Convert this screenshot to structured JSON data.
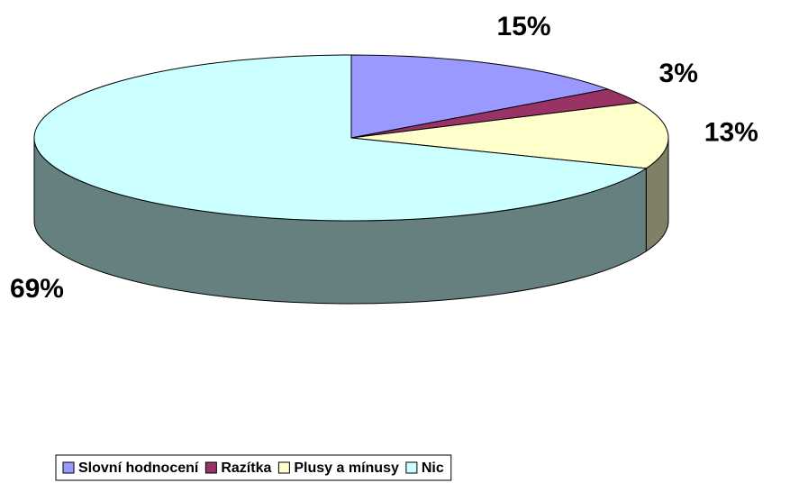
{
  "chart_data": {
    "type": "pie3d",
    "categories": [
      "Slovní hodnocení",
      "Razítka",
      "Plusy a mínusy",
      "Nic"
    ],
    "values": [
      15,
      3,
      13,
      69
    ],
    "value_labels": [
      "15%",
      "3%",
      "13%",
      "69%"
    ],
    "colors": [
      "#9999ff",
      "#993366",
      "#ffffcc",
      "#ccffff"
    ],
    "legend": "bottom"
  }
}
